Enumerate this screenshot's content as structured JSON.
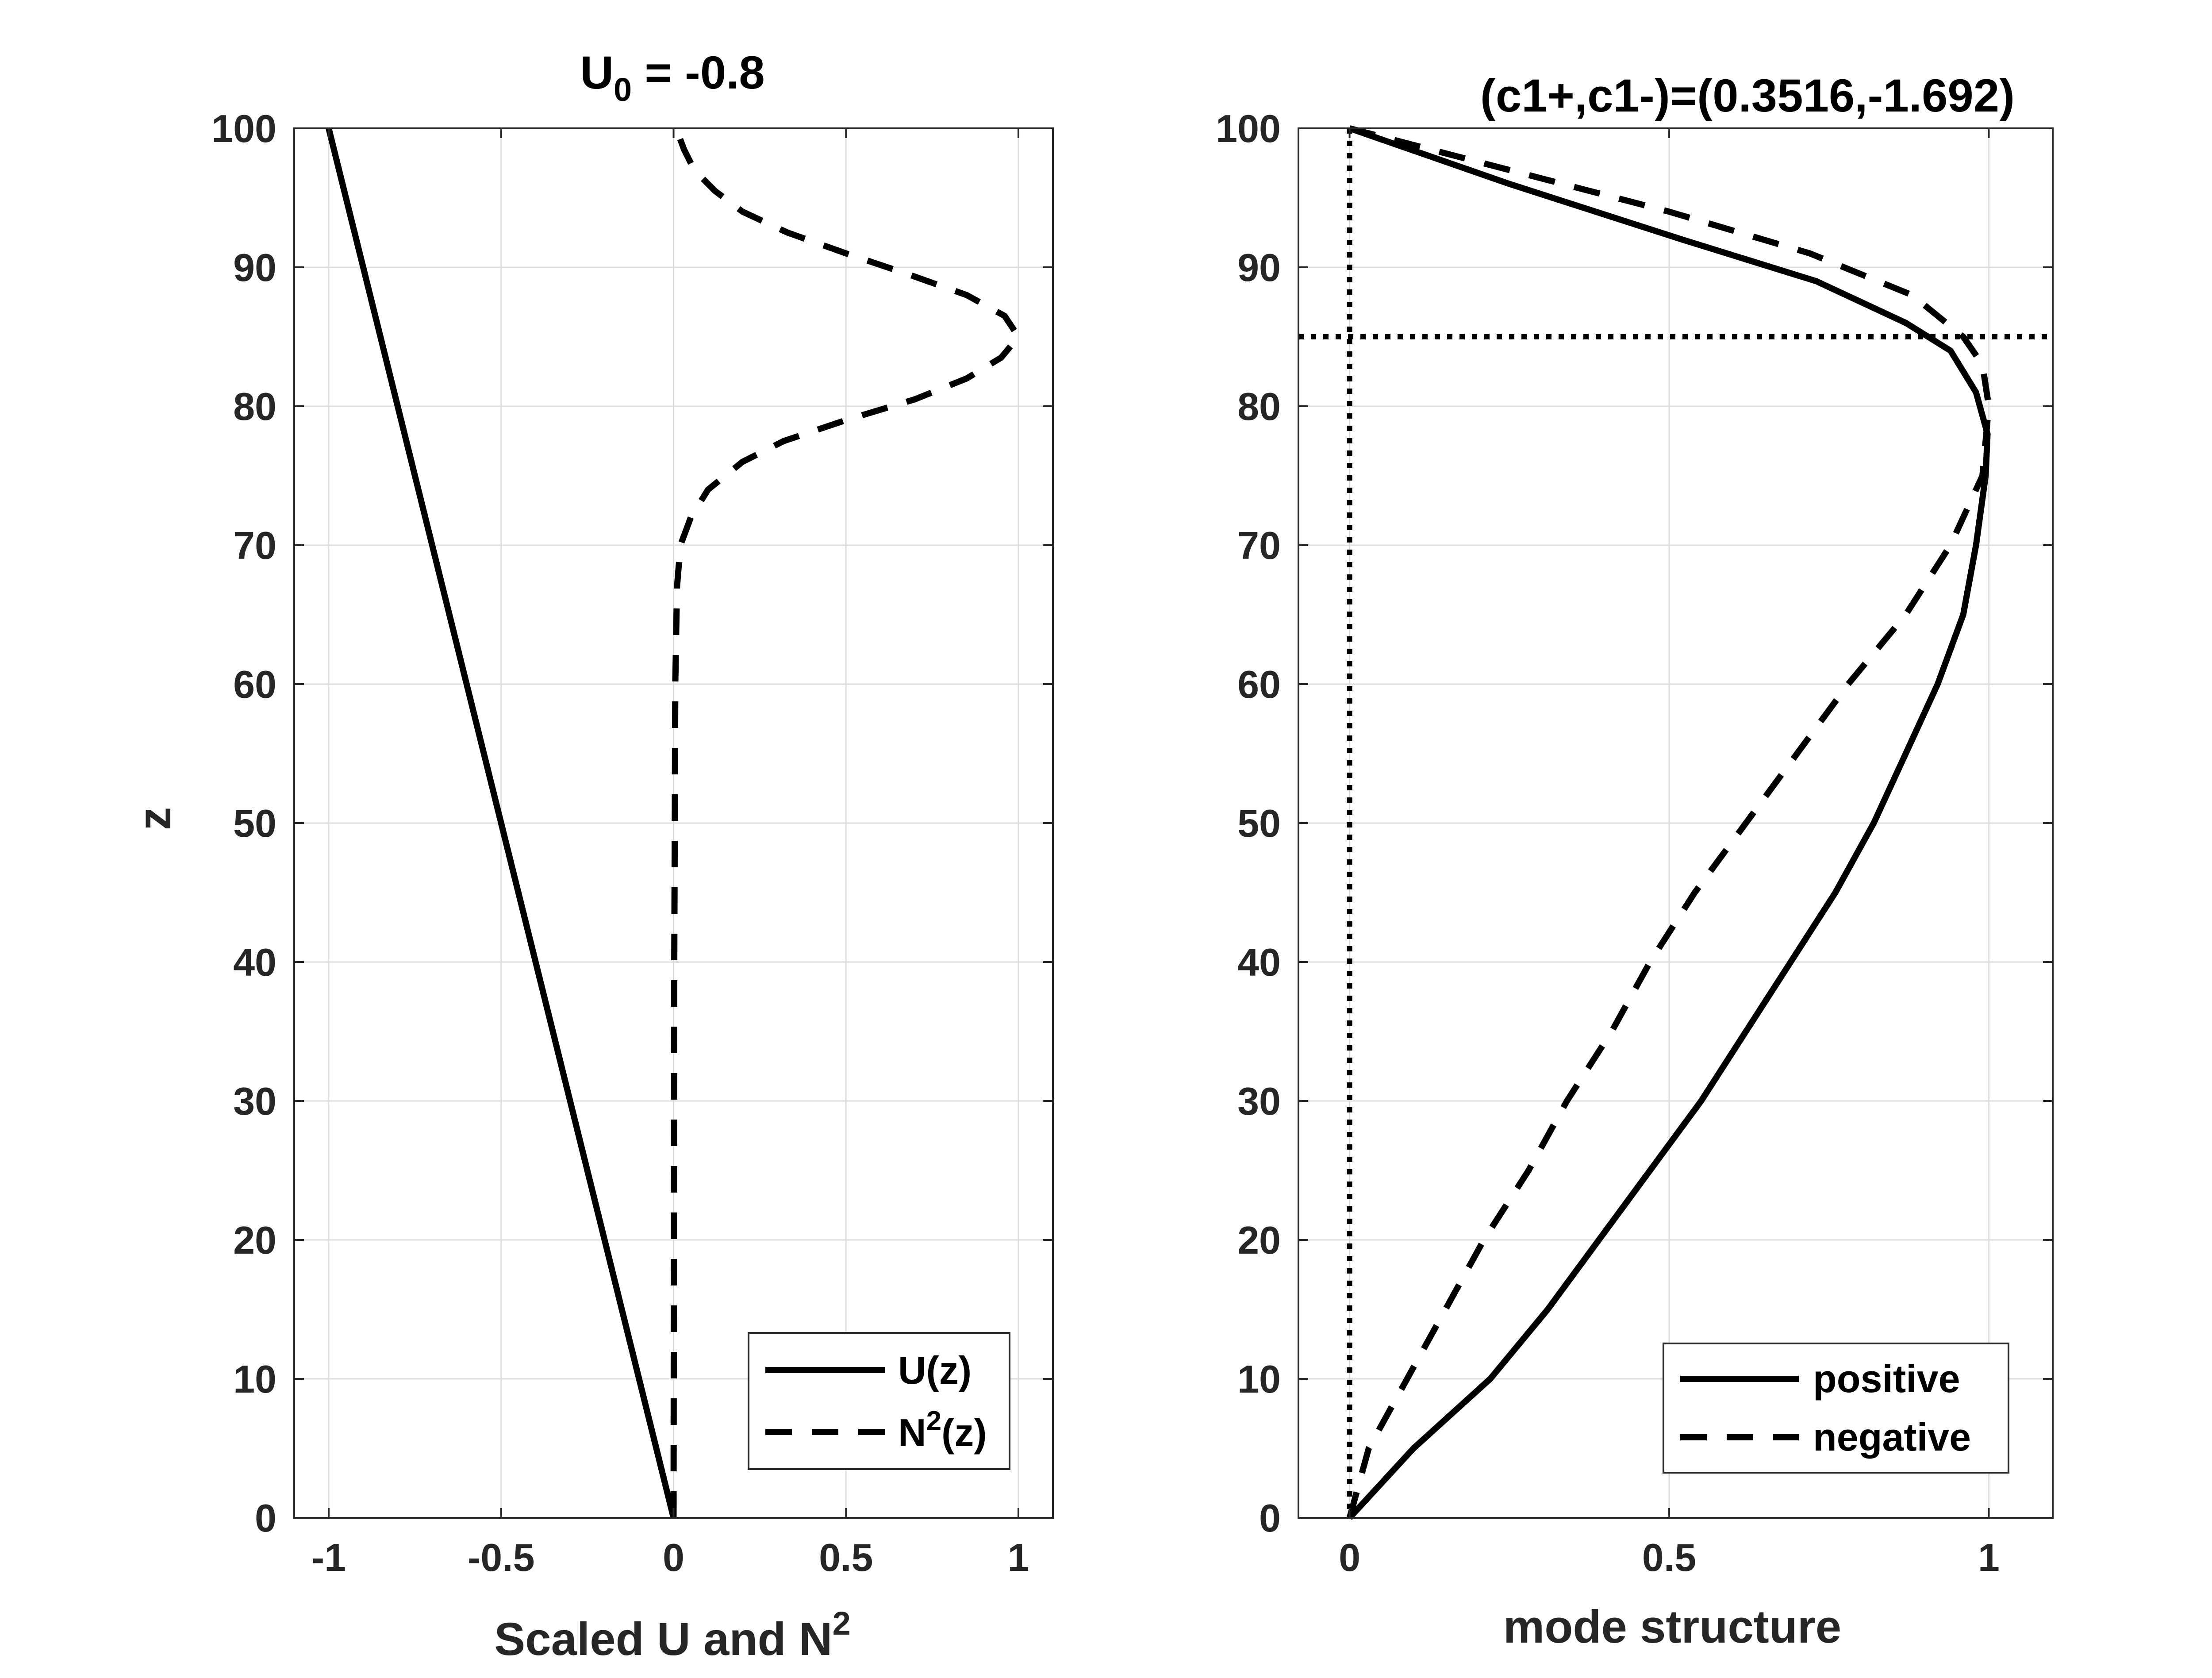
{
  "chart_data": [
    {
      "type": "line",
      "title": "U",
      "title_sub": "0",
      "title_rest": " = -0.8",
      "xlabel": "Scaled U and N",
      "xlabel_sup": "2",
      "ylabel": "z",
      "xlim": [
        -1.1,
        1.1
      ],
      "ylim": [
        0,
        100
      ],
      "xticks": [
        -1,
        -0.5,
        0,
        0.5,
        1
      ],
      "xtick_labels": [
        "-1",
        "-0.5",
        "0",
        "0.5",
        "1"
      ],
      "yticks": [
        0,
        10,
        20,
        30,
        40,
        50,
        60,
        70,
        80,
        90,
        100
      ],
      "ytick_labels": [
        "0",
        "10",
        "20",
        "30",
        "40",
        "50",
        "60",
        "70",
        "80",
        "90",
        "100"
      ],
      "grid": true,
      "legend_position": "bottom-right",
      "series": [
        {
          "name": "U(z)",
          "style": "solid",
          "x": [
            0,
            -1
          ],
          "z": [
            0,
            100
          ]
        },
        {
          "name": "N",
          "name_sup": "2",
          "name_rest": "(z)",
          "style": "dashed",
          "x": [
            0,
            0.002,
            0.005,
            0.01,
            0.02,
            0.05,
            0.1,
            0.2,
            0.32,
            0.5,
            0.7,
            0.85,
            0.95,
            1.0,
            0.96,
            0.85,
            0.68,
            0.5,
            0.33,
            0.2,
            0.12,
            0.06,
            0.03,
            0.015,
            0.01
          ],
          "z": [
            0,
            40,
            60,
            67,
            70,
            72,
            74,
            76,
            77.5,
            79,
            80.5,
            82,
            83.5,
            85,
            86.5,
            88,
            89.5,
            91,
            92.5,
            94,
            95.5,
            97,
            98.5,
            99.5,
            100
          ]
        }
      ]
    },
    {
      "type": "line",
      "title": "(c1+,c1-)=(0.3516,-1.692)",
      "xlabel": "mode structure",
      "ylabel": "",
      "xlim": [
        -0.08,
        1.1
      ],
      "ylim": [
        0,
        100
      ],
      "xticks": [
        0,
        0.5,
        1
      ],
      "xtick_labels": [
        "0",
        "0.5",
        "1"
      ],
      "yticks": [
        0,
        10,
        20,
        30,
        40,
        50,
        60,
        70,
        80,
        90,
        100
      ],
      "ytick_labels": [
        "0",
        "10",
        "20",
        "30",
        "40",
        "50",
        "60",
        "70",
        "80",
        "90",
        "100"
      ],
      "grid": true,
      "legend_position": "bottom-right",
      "reference_lines": {
        "x": 0,
        "z": 85,
        "style": "dotted"
      },
      "series": [
        {
          "name": "positive",
          "style": "solid",
          "x": [
            0,
            0.1,
            0.22,
            0.31,
            0.39,
            0.47,
            0.55,
            0.62,
            0.69,
            0.76,
            0.82,
            0.87,
            0.92,
            0.96,
            0.98,
            0.995,
            0.998,
            0.98,
            0.94,
            0.87,
            0.73,
            0.52,
            0.25,
            0
          ],
          "z": [
            0,
            5,
            10,
            15,
            20,
            25,
            30,
            35,
            40,
            45,
            50,
            55,
            60,
            65,
            70,
            75,
            78,
            81,
            84,
            86,
            89,
            92,
            96,
            100
          ]
        },
        {
          "name": "negative",
          "style": "dashed",
          "x": [
            0,
            0.03,
            0.09,
            0.15,
            0.21,
            0.28,
            0.34,
            0.41,
            0.47,
            0.54,
            0.62,
            0.7,
            0.78,
            0.87,
            0.94,
            0.99,
            1.0,
            0.99,
            0.96,
            0.88,
            0.72,
            0.5,
            0.25,
            0
          ],
          "z": [
            0,
            5,
            10,
            15,
            20,
            25,
            30,
            35,
            40,
            45,
            50,
            55,
            60,
            65,
            70,
            75,
            80,
            83,
            85,
            88,
            91,
            94,
            97,
            100
          ]
        }
      ]
    }
  ]
}
